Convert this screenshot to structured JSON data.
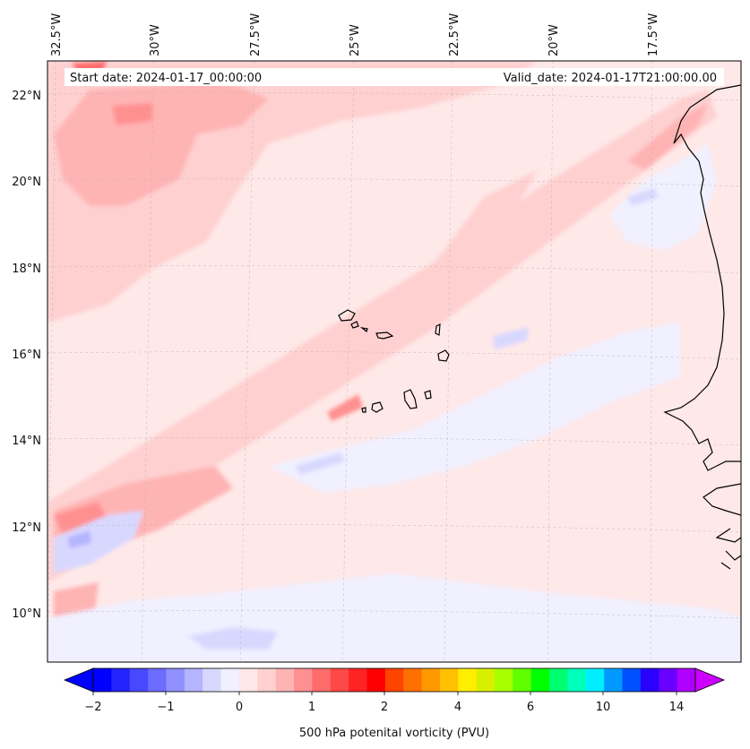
{
  "map": {
    "start_date": "Start date: 2024-01-17_00:00:00",
    "valid_date": "Valid_date: 2024-01-17T21:00:00.00",
    "lon_labels": [
      "32.5°W",
      "30°W",
      "27.5°W",
      "25°W",
      "22.5°W",
      "20°W",
      "17.5°W"
    ],
    "lat_labels": [
      "22°N",
      "20°N",
      "18°N",
      "16°N",
      "14°N",
      "12°N",
      "10°N"
    ],
    "region": "Cape Verde and West African coast"
  },
  "colorbar": {
    "label": "500 hPa potenital vorticity (PVU)",
    "tick_labels": [
      "−2",
      "−1",
      "0",
      "1",
      "2",
      "4",
      "6",
      "10",
      "14"
    ],
    "colors": [
      "#0000ff",
      "#2424ff",
      "#4848ff",
      "#6c6cff",
      "#9090ff",
      "#b4b4ff",
      "#d8d8ff",
      "#f0f0ff",
      "#ffe8e8",
      "#ffd0d0",
      "#ffb4b4",
      "#ff9090",
      "#ff6c6c",
      "#ff4848",
      "#ff2424",
      "#ff0000",
      "#ff4400",
      "#ff7000",
      "#ff9900",
      "#ffc000",
      "#ffee00",
      "#d8f000",
      "#a8ff00",
      "#60ff00",
      "#00ff00",
      "#00ff70",
      "#00ffbb",
      "#00eeff",
      "#0099ff",
      "#0050ff",
      "#2a00ff",
      "#6a00ff",
      "#b000ff"
    ],
    "extend_low_color": "#0000ff",
    "extend_high_color": "#cc00ff"
  }
}
